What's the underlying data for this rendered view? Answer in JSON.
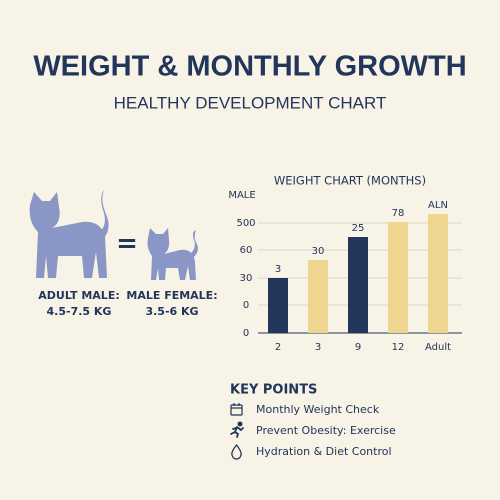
{
  "header": {
    "title": "WEIGHT & MONTHLY GROWTH",
    "subtitle": "HEALTHY DEVELOPMENT CHART"
  },
  "cats": {
    "equals": "=",
    "items": [
      {
        "label": "ADULT MALE:",
        "range": "4.5-7.5 KG"
      },
      {
        "label": "MALE FEMALE:",
        "range": "3.5-6 KG"
      }
    ]
  },
  "chart": {
    "title": "WEIGHT CHART (MONTHS)",
    "axis_label": "MALE",
    "axis_ticks": [
      "500",
      "60",
      "30",
      "0",
      "0"
    ],
    "bars": [
      {
        "category": "2",
        "label": "3"
      },
      {
        "category": "3",
        "label": "30"
      },
      {
        "category": "9",
        "label": "25"
      },
      {
        "category": "12",
        "label": "78"
      },
      {
        "category": "Adult",
        "label": "ALN"
      }
    ]
  },
  "key_points": {
    "title": "KEY POINTS",
    "items": [
      "Monthly Weight Check",
      "Prevent Obesity: Exercise",
      "Hydration & Diet Control"
    ]
  }
}
